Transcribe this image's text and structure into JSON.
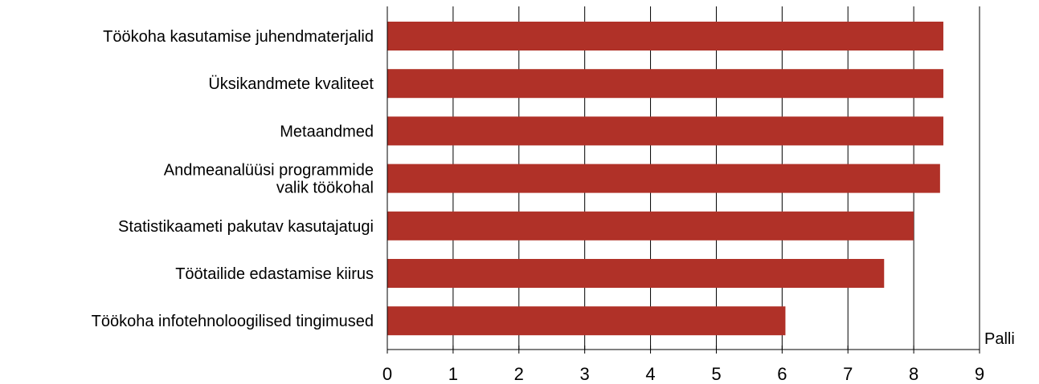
{
  "chart_data": {
    "type": "bar",
    "orientation": "horizontal",
    "categories": [
      [
        "Töökoha kasutamise juhendmaterjalid"
      ],
      [
        "Üksikandmete kvaliteet"
      ],
      [
        "Metaandmed"
      ],
      [
        "Andmeanalüüsi programmide",
        "valik töökohal"
      ],
      [
        "Statistikaameti pakutav kasutajatugi"
      ],
      [
        "Töötailide edastamise kiirus"
      ],
      [
        "Töökoha infotehnoloogilised tingimused"
      ]
    ],
    "values": [
      8.45,
      8.45,
      8.45,
      8.4,
      8.0,
      7.55,
      6.05
    ],
    "bar_color": "#b03128",
    "xlim": [
      0,
      9
    ],
    "xticks": [
      "0",
      "1",
      "2",
      "3",
      "4",
      "5",
      "6",
      "7",
      "8",
      "9"
    ],
    "unit_label": "Palli",
    "grid": true,
    "title": "",
    "xlabel": "",
    "ylabel": ""
  }
}
